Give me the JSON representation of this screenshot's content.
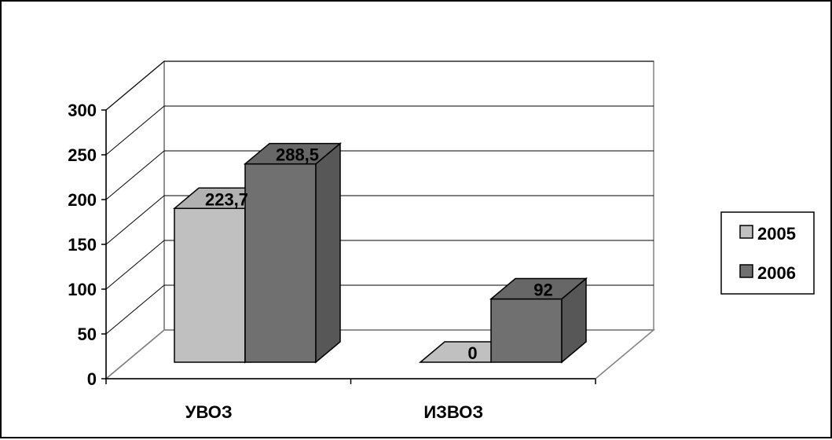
{
  "chart_data": {
    "type": "bar",
    "subtype": "3d-clustered-column",
    "title": "",
    "xlabel": "",
    "ylabel": "",
    "categories": [
      "УВОЗ",
      "ИЗВОЗ"
    ],
    "series": [
      {
        "name": "2005",
        "values": [
          223.7,
          0
        ],
        "labels": [
          "223,7",
          "0"
        ],
        "color": "#c0c0c0"
      },
      {
        "name": "2006",
        "values": [
          288.5,
          92
        ],
        "labels": [
          "288,5",
          "92"
        ],
        "color": "#707070"
      }
    ],
    "yticks": [
      0,
      50,
      100,
      150,
      200,
      250,
      300
    ],
    "ylim": [
      0,
      300
    ],
    "grid": true,
    "legend": "right"
  }
}
